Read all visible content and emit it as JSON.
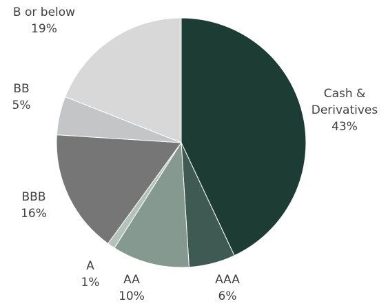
{
  "chart_data": {
    "type": "pie",
    "title": "",
    "start_angle_deg": 0,
    "direction": "clockwise",
    "slices": [
      {
        "label_lines": [
          "Cash &",
          "Derivatives"
        ],
        "value": 43,
        "value_label": "43%",
        "color": "#1d3c34"
      },
      {
        "label_lines": [
          "AAA"
        ],
        "value": 6,
        "value_label": "6%",
        "color": "#3f5a52"
      },
      {
        "label_lines": [
          "AA"
        ],
        "value": 10,
        "value_label": "10%",
        "color": "#869990"
      },
      {
        "label_lines": [
          "A"
        ],
        "value": 1,
        "value_label": "1%",
        "color": "#b3c2ba"
      },
      {
        "label_lines": [
          "BBB"
        ],
        "value": 16,
        "value_label": "16%",
        "color": "#767676"
      },
      {
        "label_lines": [
          "BB"
        ],
        "value": 5,
        "value_label": "5%",
        "color": "#c4c5c7"
      },
      {
        "label_lines": [
          "B or below"
        ],
        "value": 19,
        "value_label": "19%",
        "color": "#d8d8d8"
      }
    ]
  }
}
